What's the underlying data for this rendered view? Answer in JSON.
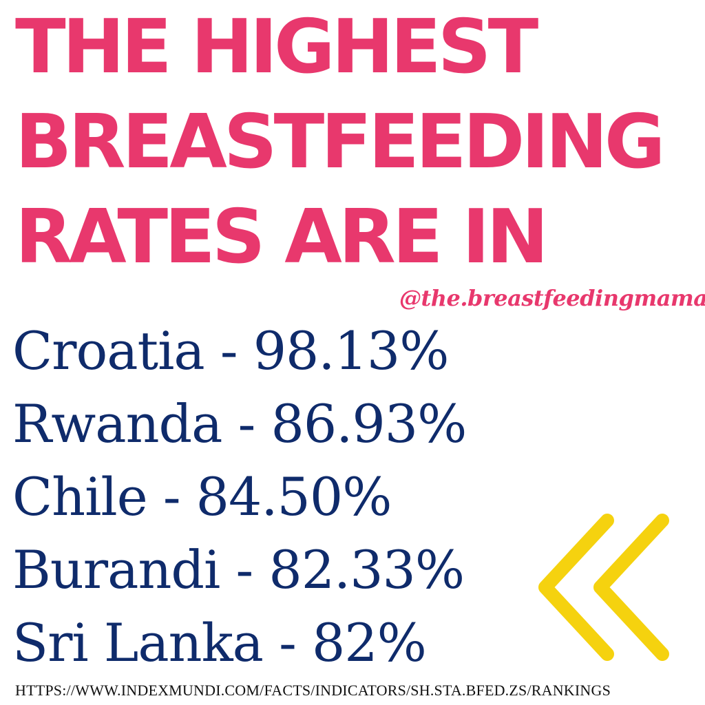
{
  "headline": {
    "lines": [
      "THE HIGHEST",
      "BREASTFEEDING",
      "RATES ARE IN"
    ]
  },
  "handle": "@the.breastfeedingmama",
  "rankings": [
    {
      "text": "Croatia - 98.13%"
    },
    {
      "text": "Rwanda - 86.93%"
    },
    {
      "text": "Chile - 84.50%"
    },
    {
      "text": "Burandi - 82.33%"
    },
    {
      "text": "Sri Lanka - 82%"
    }
  ],
  "decoration": {
    "icon": "double-chevron-left-icon",
    "color": "#f5d20f"
  },
  "source": "HTTPS://WWW.INDEXMUNDI.COM/FACTS/INDICATORS/SH.STA.BFED.ZS/RANKINGS",
  "colors": {
    "headline": "#e8386d",
    "body_text": "#0f2b6b",
    "accent": "#f5d20f",
    "background": "#ffffff"
  }
}
